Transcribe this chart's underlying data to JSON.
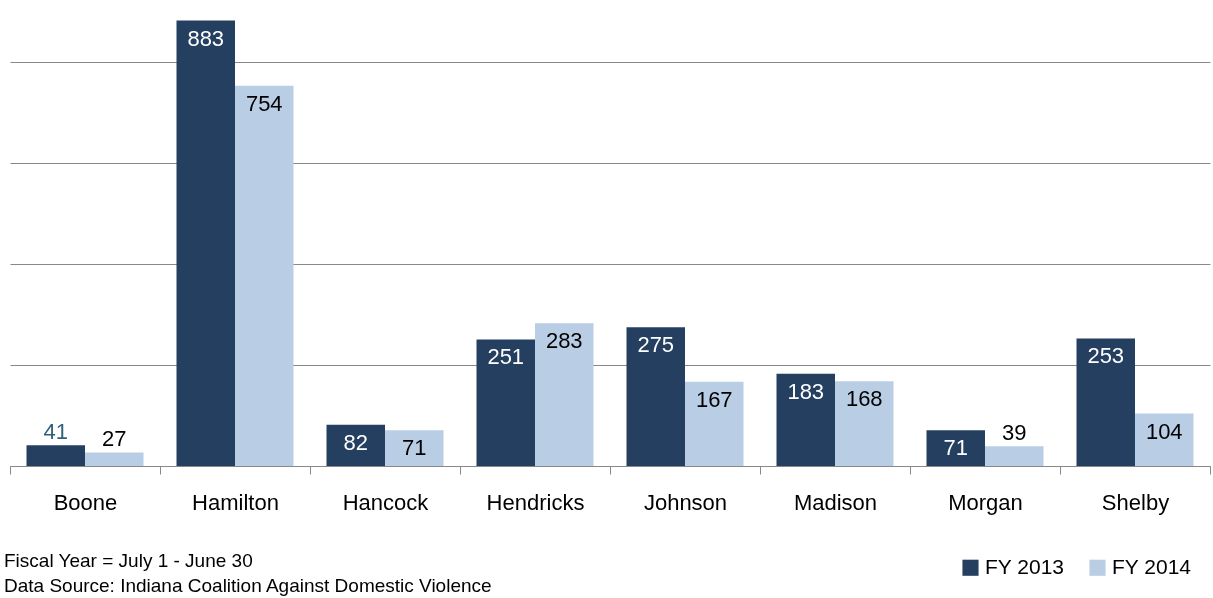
{
  "chart_data": {
    "type": "bar",
    "categories": [
      "Boone",
      "Hamilton",
      "Hancock",
      "Hendricks",
      "Johnson",
      "Madison",
      "Morgan",
      "Shelby"
    ],
    "series": [
      {
        "name": "FY 2013",
        "color": "#243f60",
        "values": [
          41,
          883,
          82,
          251,
          275,
          183,
          71,
          253
        ]
      },
      {
        "name": "FY 2014",
        "color": "#b9cde5",
        "values": [
          27,
          754,
          71,
          283,
          167,
          168,
          39,
          104
        ]
      }
    ],
    "tick_labels": "x",
    "grid": "y",
    "data_labels": true,
    "legend": "bottom right",
    "annotations": [
      "Fiscal Year = July 1 - June 30",
      "Data Source: Indiana Coalition Against Domestic Violence"
    ]
  }
}
